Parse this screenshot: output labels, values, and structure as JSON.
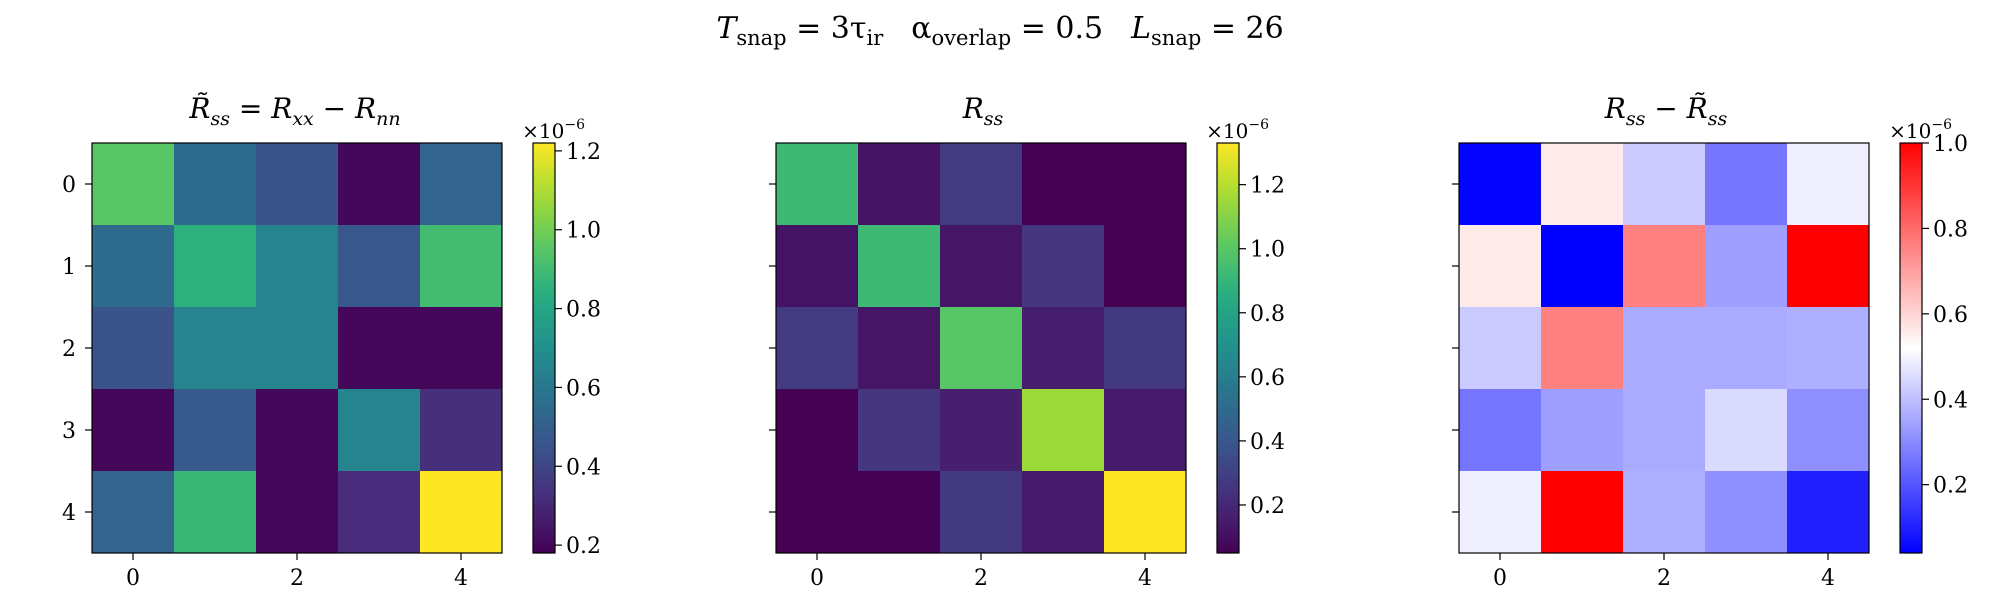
{
  "suptitle": {
    "t_sym": "T",
    "t_sub": "snap",
    "t_val": " = 3τ",
    "t_val_sub": "ir",
    "a_sym": "α",
    "a_sub": "overlap",
    "a_val": " = 0.5",
    "l_sym": "L",
    "l_sub": "snap",
    "l_val": " = 26"
  },
  "chart_data": [
    {
      "type": "heatmap",
      "title_parts": {
        "a": "R̃",
        "a_sub": "ss",
        "b": " = R",
        "b_sub": "xx",
        "c": " − R",
        "c_sub": "nn"
      },
      "colormap": "viridis",
      "rows": [
        "0",
        "1",
        "2",
        "3",
        "4"
      ],
      "cols": [
        "0",
        "1",
        "2",
        "3",
        "4"
      ],
      "xticks": [
        "0",
        "2",
        "4"
      ],
      "yticks": [
        "0",
        "1",
        "2",
        "3",
        "4"
      ],
      "show_ytick_labels": true,
      "vmin": 0.18,
      "vmax": 1.22,
      "colorbar_ticks": [
        0.2,
        0.4,
        0.6,
        0.8,
        1.0,
        1.2
      ],
      "colorbar_tick_labels": [
        "0.2",
        "0.4",
        "0.6",
        "0.8",
        "1.0",
        "1.2"
      ],
      "scale_label": "×10",
      "scale_exp": "−6",
      "values": [
        [
          0.95,
          0.55,
          0.45,
          0.2,
          0.52
        ],
        [
          0.55,
          0.85,
          0.65,
          0.47,
          0.9
        ],
        [
          0.45,
          0.65,
          0.65,
          0.2,
          0.2
        ],
        [
          0.2,
          0.48,
          0.2,
          0.65,
          0.33
        ],
        [
          0.52,
          0.88,
          0.2,
          0.32,
          1.22
        ]
      ]
    },
    {
      "type": "heatmap",
      "title_parts": {
        "a": "R",
        "a_sub": "ss"
      },
      "colormap": "viridis",
      "rows": [
        "0",
        "1",
        "2",
        "3",
        "4"
      ],
      "cols": [
        "0",
        "1",
        "2",
        "3",
        "4"
      ],
      "xticks": [
        "0",
        "2",
        "4"
      ],
      "yticks": [
        "0",
        "1",
        "2",
        "3",
        "4"
      ],
      "show_ytick_labels": false,
      "vmin": 0.05,
      "vmax": 1.33,
      "colorbar_ticks": [
        0.2,
        0.4,
        0.6,
        0.8,
        1.0,
        1.2
      ],
      "colorbar_tick_labels": [
        "0.2",
        "0.4",
        "0.6",
        "0.8",
        "1.0",
        "1.2"
      ],
      "scale_label": "×10",
      "scale_exp": "−6",
      "values": [
        [
          0.92,
          0.12,
          0.28,
          0.05,
          0.05
        ],
        [
          0.12,
          0.92,
          0.13,
          0.26,
          0.05
        ],
        [
          0.28,
          0.13,
          1.0,
          0.17,
          0.27
        ],
        [
          0.05,
          0.26,
          0.17,
          1.15,
          0.15
        ],
        [
          0.05,
          0.05,
          0.27,
          0.15,
          1.33
        ]
      ]
    },
    {
      "type": "heatmap",
      "title_parts": {
        "a": "R",
        "a_sub": "ss",
        "b": " − R̃",
        "b_sub": "ss"
      },
      "colormap": "bwr",
      "rows": [
        "0",
        "1",
        "2",
        "3",
        "4"
      ],
      "cols": [
        "0",
        "1",
        "2",
        "3",
        "4"
      ],
      "xticks": [
        "0",
        "2",
        "4"
      ],
      "yticks": [
        "0",
        "1",
        "2",
        "3",
        "4"
      ],
      "show_ytick_labels": false,
      "vmin": 0.04,
      "vmax": 1.0,
      "colorbar_ticks": [
        0.2,
        0.4,
        0.6,
        0.8,
        1.0
      ],
      "colorbar_tick_labels": [
        "0.2",
        "0.4",
        "0.6",
        "0.8",
        "1.0"
      ],
      "scale_label": "×10",
      "scale_exp": "−6",
      "values": [
        [
          0.05,
          0.56,
          0.42,
          0.26,
          0.49
        ],
        [
          0.56,
          0.04,
          0.76,
          0.34,
          1.0
        ],
        [
          0.42,
          0.76,
          0.36,
          0.36,
          0.37
        ],
        [
          0.26,
          0.34,
          0.36,
          0.45,
          0.31
        ],
        [
          0.49,
          1.0,
          0.37,
          0.31,
          0.1
        ]
      ]
    }
  ]
}
